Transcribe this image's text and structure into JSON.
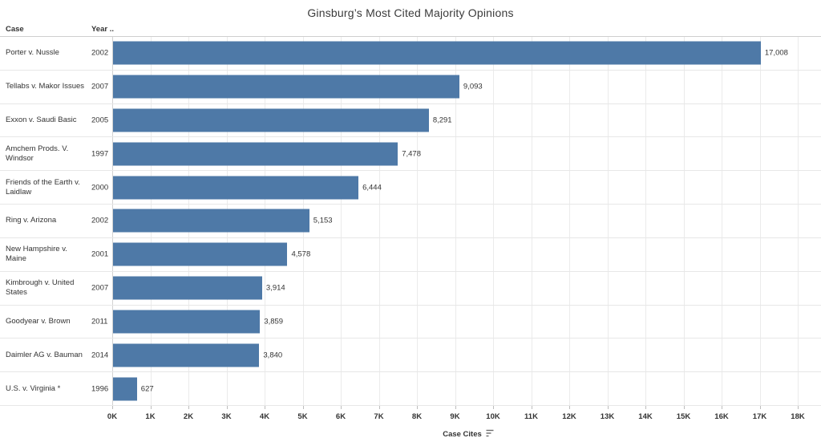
{
  "title": "Ginsburg’s Most Cited Majority Opinions",
  "columns": {
    "case": "Case",
    "year": "Year .."
  },
  "rows": [
    {
      "case": "Porter v. Nussle",
      "year": "2002",
      "value": 17008,
      "value_label": "17,008"
    },
    {
      "case": "Tellabs v. Makor Issues",
      "year": "2007",
      "value": 9093,
      "value_label": "9,093"
    },
    {
      "case": "Exxon v. Saudi Basic",
      "year": "2005",
      "value": 8291,
      "value_label": "8,291"
    },
    {
      "case": "Amchem Prods. V. Windsor",
      "year": "1997",
      "value": 7478,
      "value_label": "7,478"
    },
    {
      "case": "Friends of the Earth v. Laidlaw",
      "year": "2000",
      "value": 6444,
      "value_label": "6,444"
    },
    {
      "case": "Ring v. Arizona",
      "year": "2002",
      "value": 5153,
      "value_label": "5,153"
    },
    {
      "case": "New Hampshire v. Maine",
      "year": "2001",
      "value": 4578,
      "value_label": "4,578"
    },
    {
      "case": "Kimbrough v. United States",
      "year": "2007",
      "value": 3914,
      "value_label": "3,914"
    },
    {
      "case": "Goodyear v. Brown",
      "year": "2011",
      "value": 3859,
      "value_label": "3,859"
    },
    {
      "case": "Daimler AG v. Bauman",
      "year": "2014",
      "value": 3840,
      "value_label": "3,840"
    },
    {
      "case": "U.S. v. Virginia *",
      "year": "1996",
      "value": 627,
      "value_label": "627"
    }
  ],
  "axis": {
    "title": "Case Cites",
    "ticks": [
      "0K",
      "1K",
      "2K",
      "3K",
      "4K",
      "5K",
      "6K",
      "7K",
      "8K",
      "9K",
      "10K",
      "11K",
      "12K",
      "13K",
      "14K",
      "15K",
      "16K",
      "17K",
      "18K"
    ],
    "max": 18000
  },
  "icons": {
    "sort": "sort-descending-icon"
  },
  "colors": {
    "bar": "#4e79a7",
    "text": "#333333",
    "gridline": "#ebebeb",
    "row_divider": "#e7e7e7",
    "axis_line": "#d2d2d2"
  },
  "chart_data": {
    "type": "bar",
    "orientation": "horizontal",
    "title": "Ginsburg’s Most Cited Majority Opinions",
    "categories": [
      "Porter v. Nussle",
      "Tellabs v. Makor Issues",
      "Exxon v. Saudi Basic",
      "Amchem Prods. V. Windsor",
      "Friends of the Earth v. Laidlaw",
      "Ring v. Arizona",
      "New Hampshire v. Maine",
      "Kimbrough v. United States",
      "Goodyear v. Brown",
      "Daimler AG v. Bauman",
      "U.S. v. Virginia *"
    ],
    "years": [
      2002,
      2007,
      2005,
      1997,
      2000,
      2002,
      2001,
      2007,
      2011,
      2014,
      1996
    ],
    "values": [
      17008,
      9093,
      8291,
      7478,
      6444,
      5153,
      4578,
      3914,
      3859,
      3840,
      627
    ],
    "xlabel": "Case Cites",
    "ylabel": "Case / Year",
    "xlim": [
      0,
      18000
    ],
    "grid": true,
    "legend": false,
    "bar_color": "#4e79a7"
  }
}
